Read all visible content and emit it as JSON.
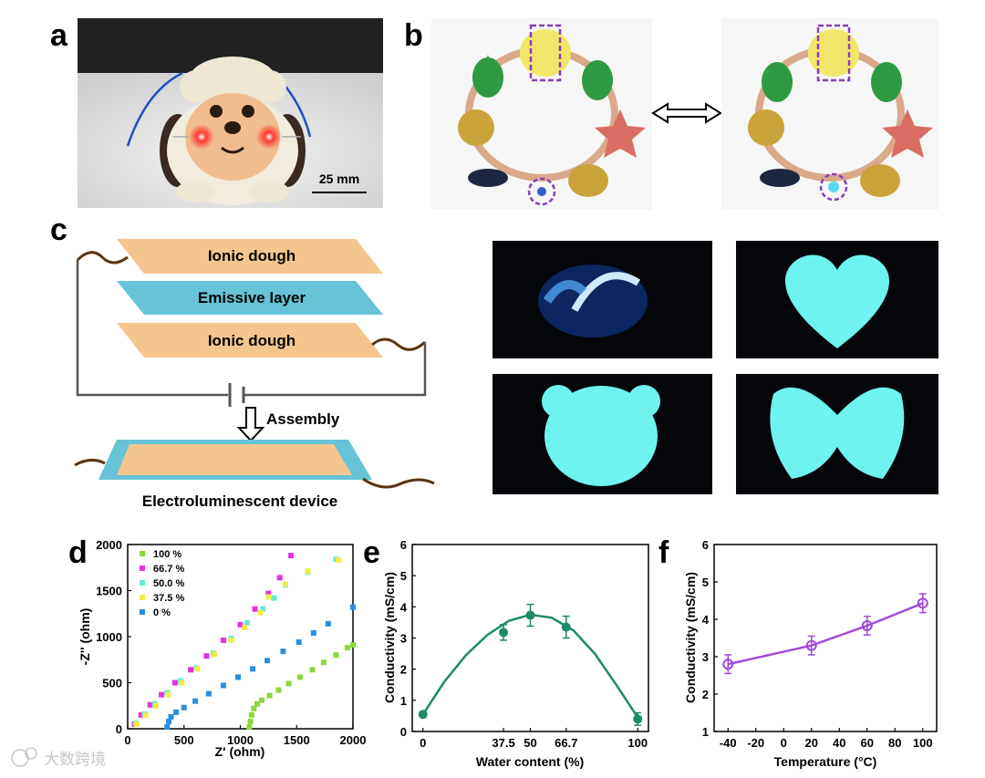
{
  "panel_labels": {
    "a": "a",
    "b": "b",
    "c": "c",
    "d": "d",
    "e": "e",
    "f": "f"
  },
  "panel_a": {
    "scale_bar_label": "25 mm"
  },
  "panel_c": {
    "layer_top": "Ionic dough",
    "layer_middle": "Emissive layer",
    "layer_bottom": "Ionic dough",
    "arrow_label": "Assembly",
    "device_label": "Electroluminescent device"
  },
  "watermark": "大数跨境",
  "colors": {
    "dough": "#f5c58e",
    "emissive": "#66c3d8",
    "wire": "#5a3512",
    "circuit": "#555555",
    "glow": "#6ff3ee",
    "d_100": "#8fd63a",
    "d_66_7": "#e334e3",
    "d_50": "#66e8d8",
    "d_37_5": "#f0ec46",
    "d_0": "#2a8fe0",
    "e_line": "#1d8a6a",
    "f_line": "#a248d8"
  },
  "chart_data": [
    {
      "id": "d",
      "type": "scatter",
      "xlabel": "Z' (ohm)",
      "ylabel": "-Z'' (ohm)",
      "xlim": [
        0,
        2000
      ],
      "ylim": [
        0,
        2000
      ],
      "xticks": [
        0,
        500,
        1000,
        1500,
        2000
      ],
      "yticks": [
        0,
        500,
        1000,
        1500,
        2000
      ],
      "series": [
        {
          "name": "100 %",
          "color_key": "d_100",
          "points": [
            [
              1080,
              20
            ],
            [
              1090,
              80
            ],
            [
              1100,
              150
            ],
            [
              1120,
              220
            ],
            [
              1150,
              270
            ],
            [
              1190,
              310
            ],
            [
              1260,
              360
            ],
            [
              1340,
              420
            ],
            [
              1430,
              490
            ],
            [
              1530,
              560
            ],
            [
              1640,
              640
            ],
            [
              1740,
              720
            ],
            [
              1850,
              800
            ],
            [
              1950,
              880
            ],
            [
              2000,
              910
            ]
          ]
        },
        {
          "name": "66.7 %",
          "color_key": "d_66_7",
          "points": [
            [
              60,
              50
            ],
            [
              120,
              150
            ],
            [
              200,
              260
            ],
            [
              300,
              370
            ],
            [
              420,
              500
            ],
            [
              560,
              640
            ],
            [
              700,
              790
            ],
            [
              850,
              960
            ],
            [
              1000,
              1130
            ],
            [
              1130,
              1300
            ],
            [
              1250,
              1470
            ],
            [
              1350,
              1640
            ],
            [
              1450,
              1880
            ]
          ]
        },
        {
          "name": "50.0 %",
          "color_key": "d_50",
          "points": [
            [
              70,
              60
            ],
            [
              150,
              160
            ],
            [
              240,
              270
            ],
            [
              350,
              390
            ],
            [
              470,
              520
            ],
            [
              610,
              660
            ],
            [
              760,
              820
            ],
            [
              920,
              980
            ],
            [
              1060,
              1150
            ],
            [
              1200,
              1300
            ],
            [
              1300,
              1420
            ],
            [
              1400,
              1560
            ],
            [
              1600,
              1700
            ],
            [
              1850,
              1840
            ]
          ]
        },
        {
          "name": "37.5 %",
          "color_key": "d_37_5",
          "points": [
            [
              80,
              50
            ],
            [
              160,
              150
            ],
            [
              250,
              250
            ],
            [
              360,
              370
            ],
            [
              480,
              500
            ],
            [
              620,
              650
            ],
            [
              770,
              810
            ],
            [
              920,
              960
            ],
            [
              1040,
              1100
            ],
            [
              1180,
              1260
            ],
            [
              1250,
              1430
            ],
            [
              1400,
              1570
            ],
            [
              1600,
              1710
            ],
            [
              1870,
              1830
            ]
          ]
        },
        {
          "name": "0 %",
          "color_key": "d_0",
          "points": [
            [
              350,
              20
            ],
            [
              365,
              80
            ],
            [
              385,
              130
            ],
            [
              430,
              180
            ],
            [
              500,
              230
            ],
            [
              600,
              300
            ],
            [
              720,
              380
            ],
            [
              850,
              470
            ],
            [
              980,
              560
            ],
            [
              1110,
              650
            ],
            [
              1240,
              740
            ],
            [
              1380,
              840
            ],
            [
              1520,
              940
            ],
            [
              1650,
              1040
            ],
            [
              1780,
              1140
            ],
            [
              2000,
              1320
            ]
          ]
        }
      ]
    },
    {
      "id": "e",
      "type": "line",
      "xlabel": "Water content (%)",
      "ylabel": "Conductivity (mS/cm)",
      "x_ticklabels": [
        "0",
        "37.5",
        "50",
        "66.7",
        "100"
      ],
      "xlim": [
        -5,
        105
      ],
      "ylim": [
        0,
        6
      ],
      "yticks": [
        0,
        1,
        2,
        3,
        4,
        5,
        6
      ],
      "points": [
        {
          "x": 0,
          "y": 0.55,
          "err": 0.05
        },
        {
          "x": 37.5,
          "y": 3.18,
          "err": 0.25
        },
        {
          "x": 50,
          "y": 3.73,
          "err": 0.35
        },
        {
          "x": 66.7,
          "y": 3.35,
          "err": 0.35
        },
        {
          "x": 100,
          "y": 0.4,
          "err": 0.2
        }
      ],
      "fit": [
        [
          0,
          0.55
        ],
        [
          10,
          1.6
        ],
        [
          20,
          2.45
        ],
        [
          30,
          3.1
        ],
        [
          40,
          3.55
        ],
        [
          50,
          3.75
        ],
        [
          60,
          3.65
        ],
        [
          70,
          3.25
        ],
        [
          80,
          2.5
        ],
        [
          90,
          1.5
        ],
        [
          100,
          0.45
        ]
      ]
    },
    {
      "id": "f",
      "type": "line",
      "xlabel": "Temperature (°C)",
      "ylabel": "Conductivity (mS/cm)",
      "xlim": [
        -50,
        110
      ],
      "ylim": [
        1,
        6
      ],
      "xticks": [
        -40,
        -20,
        0,
        20,
        40,
        60,
        80,
        100
      ],
      "x_ticklabels": [
        "-40",
        "-20",
        "0",
        "20",
        "40",
        "60",
        "80",
        "100"
      ],
      "yticks": [
        1,
        2,
        3,
        4,
        5,
        6
      ],
      "points": [
        {
          "x": -40,
          "y": 2.8,
          "err": 0.25
        },
        {
          "x": 20,
          "y": 3.3,
          "err": 0.25
        },
        {
          "x": 60,
          "y": 3.83,
          "err": 0.25
        },
        {
          "x": 100,
          "y": 4.43,
          "err": 0.25
        }
      ]
    }
  ]
}
